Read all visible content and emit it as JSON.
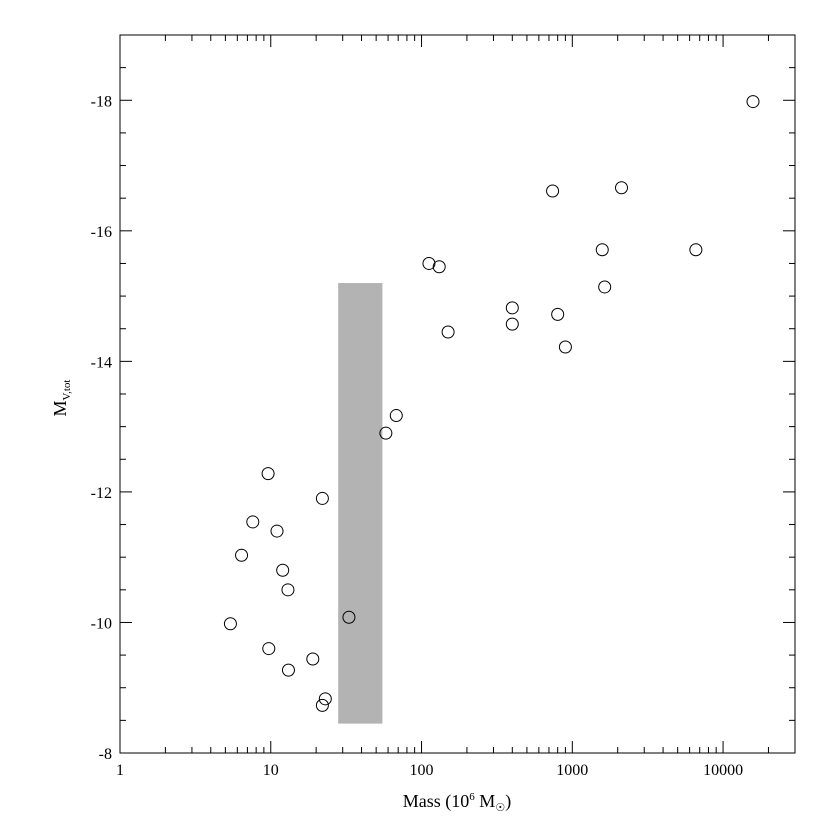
{
  "chart_data": {
    "type": "scatter",
    "x_scale": "log",
    "xlim": [
      1,
      30000
    ],
    "ylim": [
      -8,
      -19
    ],
    "xlabel": {
      "main": "Mass (10",
      "sup": "6",
      "unit": " M",
      "sun": "☉",
      "close": ")"
    },
    "ylabel": {
      "main": "M",
      "sub": "V,tot"
    },
    "x_ticks": [
      {
        "value": 1,
        "label": "1"
      },
      {
        "value": 10,
        "label": "10"
      },
      {
        "value": 100,
        "label": "100"
      },
      {
        "value": 1000,
        "label": "1000"
      },
      {
        "value": 10000,
        "label": "10000"
      }
    ],
    "y_ticks": [
      {
        "value": -8,
        "label": "-8"
      },
      {
        "value": -10,
        "label": "-10"
      },
      {
        "value": -12,
        "label": "-12"
      },
      {
        "value": -14,
        "label": "-14"
      },
      {
        "value": -16,
        "label": "-16"
      },
      {
        "value": -18,
        "label": "-18"
      }
    ],
    "shaded_region": {
      "x": [
        28,
        55
      ],
      "y": [
        -8.45,
        -15.2
      ],
      "color": "#b3b3b3"
    },
    "marker_color": "#000000",
    "points": [
      {
        "x": 5.4,
        "y": -9.98
      },
      {
        "x": 6.4,
        "y": -11.03
      },
      {
        "x": 7.6,
        "y": -11.54
      },
      {
        "x": 9.6,
        "y": -12.28
      },
      {
        "x": 9.7,
        "y": -9.6
      },
      {
        "x": 11.0,
        "y": -11.4
      },
      {
        "x": 12.0,
        "y": -10.8
      },
      {
        "x": 13.0,
        "y": -10.5
      },
      {
        "x": 13.1,
        "y": -9.27
      },
      {
        "x": 19.0,
        "y": -9.44
      },
      {
        "x": 22.0,
        "y": -11.9
      },
      {
        "x": 22.0,
        "y": -8.73
      },
      {
        "x": 23.0,
        "y": -8.83
      },
      {
        "x": 33.0,
        "y": -10.08
      },
      {
        "x": 58.0,
        "y": -12.9
      },
      {
        "x": 68.0,
        "y": -13.17
      },
      {
        "x": 112.0,
        "y": -15.5
      },
      {
        "x": 131.0,
        "y": -15.45
      },
      {
        "x": 150.0,
        "y": -14.45
      },
      {
        "x": 400.0,
        "y": -14.82
      },
      {
        "x": 400.0,
        "y": -14.57
      },
      {
        "x": 740.0,
        "y": -16.61
      },
      {
        "x": 800.0,
        "y": -14.72
      },
      {
        "x": 900.0,
        "y": -14.22
      },
      {
        "x": 1580.0,
        "y": -15.71
      },
      {
        "x": 1640.0,
        "y": -15.14
      },
      {
        "x": 2120.0,
        "y": -16.66
      },
      {
        "x": 6600.0,
        "y": -15.71
      },
      {
        "x": 15800.0,
        "y": -17.98
      }
    ]
  }
}
